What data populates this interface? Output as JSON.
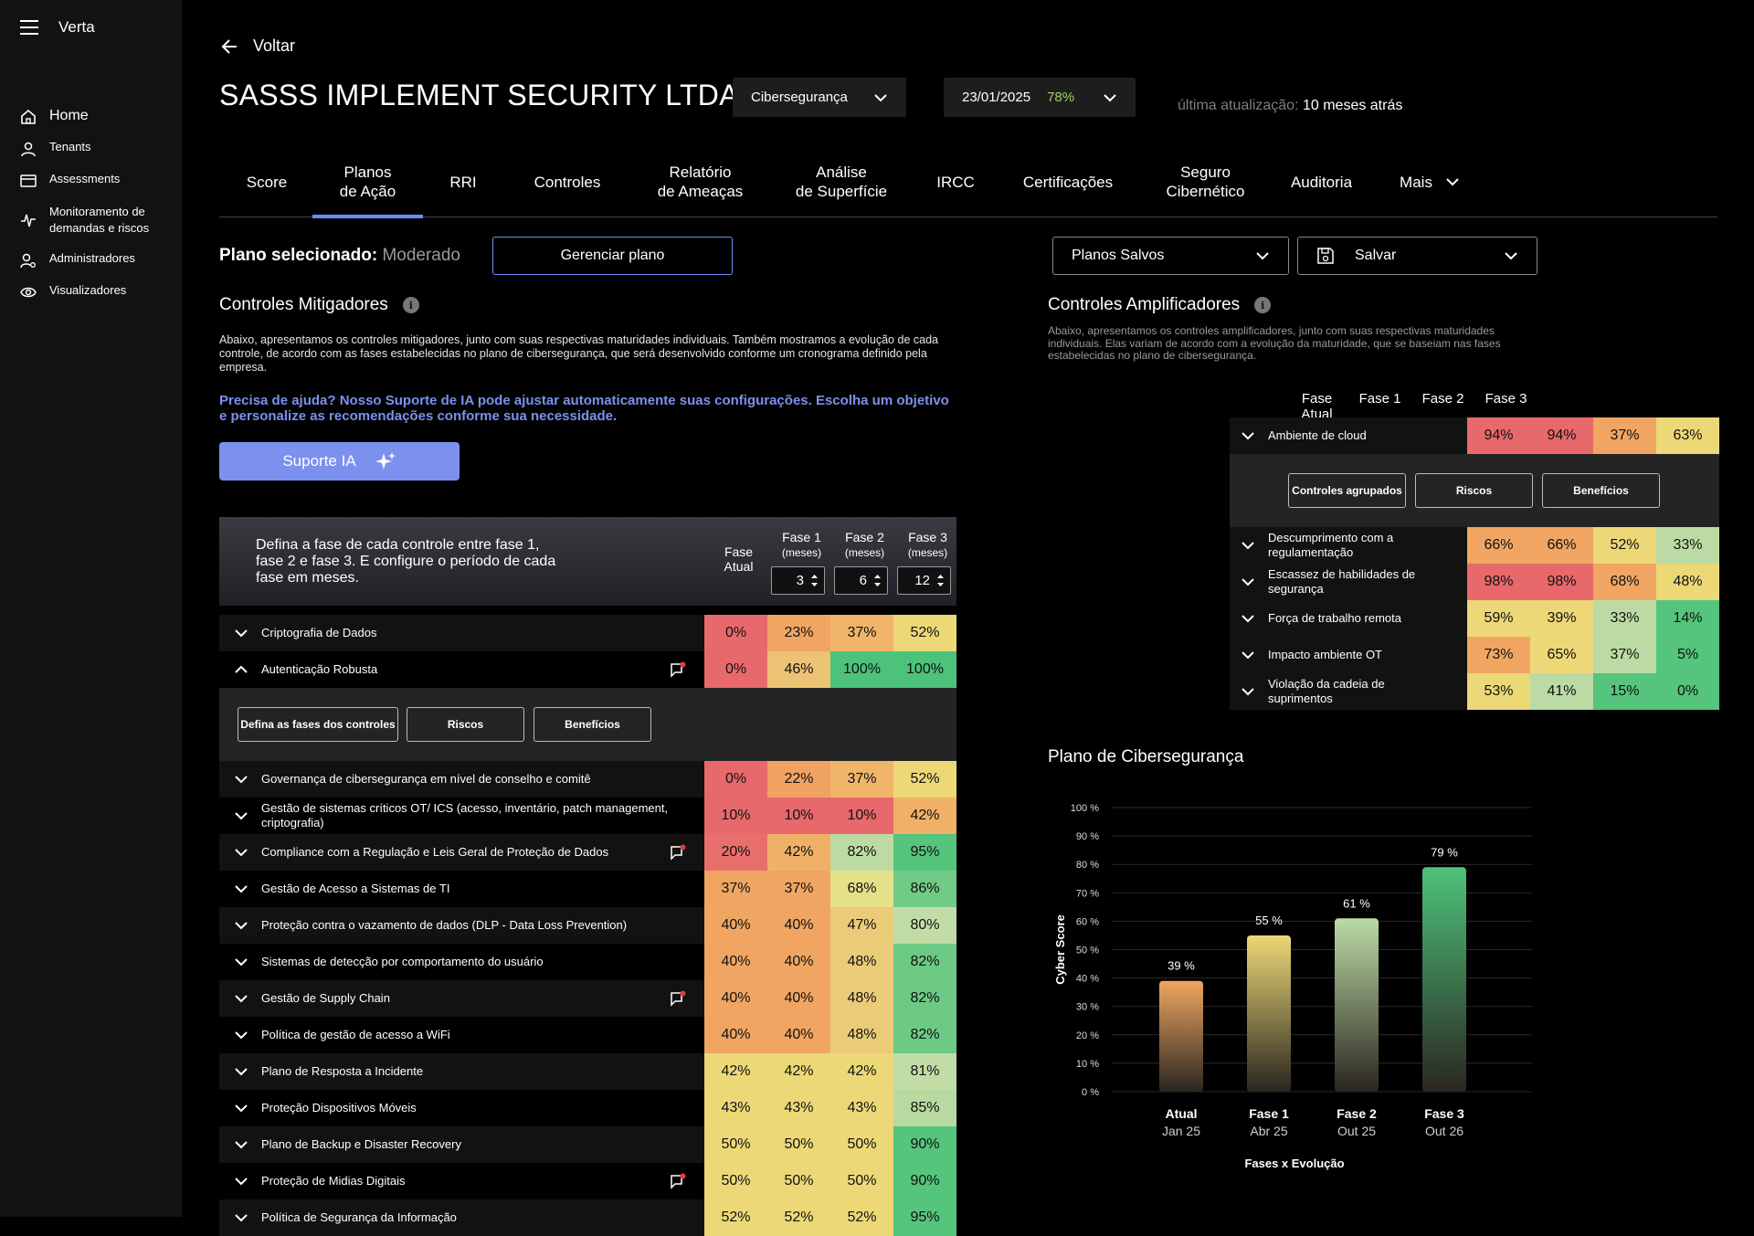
{
  "app": {
    "logo": "Verta"
  },
  "sidebar": {
    "items": [
      {
        "label": "Home",
        "icon": "home-icon"
      },
      {
        "label": "Tenants",
        "icon": "user-icon"
      },
      {
        "label": "Assessments",
        "icon": "card-icon"
      },
      {
        "label": "Monitoramento de demandas e riscos",
        "icon": "pulse-icon"
      },
      {
        "label": "Administradores",
        "icon": "admin-icon"
      },
      {
        "label": "Visualizadores",
        "icon": "eye-icon"
      }
    ]
  },
  "header": {
    "back_label": "Voltar",
    "company": "SASSS IMPLEMENT SECURITY LTDA",
    "category": "Cibersegurança",
    "date": "23/01/2025",
    "date_score": "78%",
    "updated_label": "última atualização:",
    "updated_value": "10 meses atrás"
  },
  "tabs": [
    {
      "l1": "Score",
      "l2": ""
    },
    {
      "l1": "Planos",
      "l2": "de Ação"
    },
    {
      "l1": "RRI",
      "l2": ""
    },
    {
      "l1": "Controles",
      "l2": ""
    },
    {
      "l1": "Relatório",
      "l2": "de Ameaças"
    },
    {
      "l1": "Análise",
      "l2": "de Superfície"
    },
    {
      "l1": "IRCC",
      "l2": ""
    },
    {
      "l1": "Certificações",
      "l2": ""
    },
    {
      "l1": "Seguro",
      "l2": "Cibernético"
    },
    {
      "l1": "Auditoria",
      "l2": ""
    },
    {
      "l1": "Mais",
      "l2": ""
    }
  ],
  "plan": {
    "selected_label": "Plano selecionado:",
    "selected_value": "Moderado",
    "manage_button": "Gerenciar plano",
    "saved_plans": "Planos Salvos",
    "save": "Salvar"
  },
  "mitigadores": {
    "title": "Controles Mitigadores",
    "desc": "Abaixo, apresentamos os controles mitigadores, junto com suas respectivas maturidades individuais. Também mostramos a evolução de cada controle, de acordo com as fases estabelecidas no plano de cibersegurança, que será desenvolvido conforme um cronograma definido pela empresa.",
    "help": "Precisa de ajuda? Nosso Suporte de IA pode ajustar automaticamente suas configurações. Escolha um objetivo e personalize as recomendações conforme sua necessidade.",
    "ia_button": "Suporte IA",
    "table_intro": "Defina a fase de cada controle entre fase 1, fase 2 e fase 3.  E configure o período de cada fase em meses.",
    "col_atual": "Fase Atual",
    "col_f1": "Fase 1",
    "col_f2": "Fase 2",
    "col_f3": "Fase 3",
    "col_unit": "(meses)",
    "months": [
      "3",
      "6",
      "12"
    ],
    "sub_buttons": [
      "Defina as fases dos controles",
      "Riscos",
      "Benefícios"
    ],
    "rows": [
      {
        "label": "Criptografia de Dados",
        "v": [
          "0%",
          "23%",
          "37%",
          "52%"
        ],
        "c": [
          "#e8696b",
          "#f0a662",
          "#f0b56a",
          "#ecd877"
        ],
        "chat": false,
        "open": false
      },
      {
        "label": "Autenticação Robusta",
        "v": [
          "0%",
          "46%",
          "100%",
          "100%"
        ],
        "c": [
          "#e8696b",
          "#ecc274",
          "#4dc27a",
          "#4dc27a"
        ],
        "chat": true,
        "open": true
      },
      {
        "label": "Governança de cibersegurança em nível de conselho e comitê",
        "v": [
          "0%",
          "22%",
          "37%",
          "52%"
        ],
        "c": [
          "#e8696b",
          "#f0a262",
          "#f0b56a",
          "#ecd877"
        ],
        "chat": false
      },
      {
        "label": "Gestão de sistemas críticos OT/ ICS (acesso, inventário, patch management, criptografia)",
        "v": [
          "10%",
          "10%",
          "10%",
          "42%"
        ],
        "c": [
          "#e8696b",
          "#e8696b",
          "#e8696b",
          "#f0b068"
        ],
        "chat": false
      },
      {
        "label": "Compliance com a Regulação e Leis Geral de Proteção de Dados",
        "v": [
          "20%",
          "42%",
          "82%",
          "95%"
        ],
        "c": [
          "#e86f6b",
          "#f0b068",
          "#bcdba4",
          "#55c47c"
        ],
        "chat": true
      },
      {
        "label": "Gestão de Acesso a Sistemas de TI",
        "v": [
          "37%",
          "37%",
          "68%",
          "86%"
        ],
        "c": [
          "#f0a662",
          "#f0a662",
          "#e5e08a",
          "#71cb86"
        ],
        "chat": false
      },
      {
        "label": "Proteção contra o vazamento de dados (DLP - Data Loss Prevention)",
        "v": [
          "40%",
          "40%",
          "47%",
          "80%"
        ],
        "c": [
          "#f0a662",
          "#f0a662",
          "#eacb78",
          "#c2dca6"
        ],
        "chat": false
      },
      {
        "label": "Sistemas de detecção por comportamento do usuário",
        "v": [
          "40%",
          "40%",
          "48%",
          "82%"
        ],
        "c": [
          "#f0a662",
          "#f0a662",
          "#eacb78",
          "#6cca84"
        ],
        "chat": false
      },
      {
        "label": "Gestão de Supply Chain",
        "v": [
          "40%",
          "40%",
          "48%",
          "82%"
        ],
        "c": [
          "#f0a662",
          "#f0a662",
          "#eacb78",
          "#6cca84"
        ],
        "chat": true
      },
      {
        "label": "Política de gestão de acesso a WiFi",
        "v": [
          "40%",
          "40%",
          "48%",
          "82%"
        ],
        "c": [
          "#f0a662",
          "#f0a662",
          "#eacb78",
          "#6cca84"
        ],
        "chat": false
      },
      {
        "label": "Plano de Resposta a Incidente",
        "v": [
          "42%",
          "42%",
          "42%",
          "81%"
        ],
        "c": [
          "#ecd877",
          "#ecd877",
          "#ecd877",
          "#c2dca6"
        ],
        "chat": false
      },
      {
        "label": "Proteção Dispositivos Móveis",
        "v": [
          "43%",
          "43%",
          "43%",
          "85%"
        ],
        "c": [
          "#ecd877",
          "#ecd877",
          "#ecd877",
          "#b8d9a0"
        ],
        "chat": false
      },
      {
        "label": "Plano de Backup e Disaster Recovery",
        "v": [
          "50%",
          "50%",
          "50%",
          "90%"
        ],
        "c": [
          "#ecd877",
          "#ecd877",
          "#ecd877",
          "#55c47c"
        ],
        "chat": false
      },
      {
        "label": "Proteção de Midias Digitais",
        "v": [
          "50%",
          "50%",
          "50%",
          "90%"
        ],
        "c": [
          "#ecd877",
          "#ecd877",
          "#ecd877",
          "#55c47c"
        ],
        "chat": true
      },
      {
        "label": "Política de Segurança da Informação",
        "v": [
          "52%",
          "52%",
          "52%",
          "95%"
        ],
        "c": [
          "#ecd877",
          "#ecd877",
          "#ecd877",
          "#55c47c"
        ],
        "chat": false
      }
    ]
  },
  "amplificadores": {
    "title": "Controles Amplificadores",
    "desc": "Abaixo, apresentamos os controles amplificadores, junto com suas respectivas maturidades individuais. Elas variam de acordo com a evolução da maturidade, que se baseiam nas fases estabelecidas no plano de cibersegurança.",
    "cols": [
      "Fase Atual",
      "Fase 1",
      "Fase 2",
      "Fase 3"
    ],
    "sub_buttons": [
      "Controles agrupados",
      "Riscos",
      "Benefícios"
    ],
    "rows": [
      {
        "label": "Ambiente de cloud",
        "v": [
          "94%",
          "94%",
          "37%",
          "63%"
        ],
        "c": [
          "#e8696b",
          "#e8696b",
          "#f0a662",
          "#ecd877"
        ]
      },
      {
        "label": "Descumprimento com a regulamentação",
        "v": [
          "66%",
          "66%",
          "52%",
          "33%"
        ],
        "c": [
          "#f0a662",
          "#f0a662",
          "#ecd877",
          "#bcdba4"
        ]
      },
      {
        "label": "Escassez de habilidades de segurança",
        "v": [
          "98%",
          "98%",
          "68%",
          "48%"
        ],
        "c": [
          "#e8696b",
          "#e8696b",
          "#f0a662",
          "#ecd877"
        ]
      },
      {
        "label": "Força de trabalho remota",
        "v": [
          "59%",
          "39%",
          "33%",
          "14%"
        ],
        "c": [
          "#ecd877",
          "#ecd877",
          "#bcdba4",
          "#55c47c"
        ]
      },
      {
        "label": "Impacto ambiente OT",
        "v": [
          "73%",
          "65%",
          "37%",
          "5%"
        ],
        "c": [
          "#f0a662",
          "#ecd877",
          "#bcdba4",
          "#55c47c"
        ]
      },
      {
        "label": "Violação da cadeia de suprimentos",
        "v": [
          "53%",
          "41%",
          "15%",
          "0%"
        ],
        "c": [
          "#ecd877",
          "#bcdba4",
          "#55c47c",
          "#55c47c"
        ]
      }
    ]
  },
  "chart_data": {
    "type": "bar",
    "title": "Plano de Cibersegurança",
    "categories": [
      "Atual",
      "Fase 1",
      "Fase 2",
      "Fase 3"
    ],
    "subcategories": [
      "Jan 25",
      "Abr 25",
      "Out 25",
      "Out 26"
    ],
    "values": [
      39,
      55,
      61,
      79
    ],
    "value_labels": [
      "39 %",
      "55 %",
      "61 %",
      "79 %"
    ],
    "colors": [
      "#f0a662",
      "#ecd877",
      "#bcdba4",
      "#4dc27a"
    ],
    "ylabel": "Cyber Score",
    "xlabel": "Fases x Evolução",
    "ylim": [
      0,
      100
    ],
    "yticks": [
      "0 %",
      "10 %",
      "20 %",
      "30 %",
      "40 %",
      "50 %",
      "60 %",
      "70 %",
      "80 %",
      "90 %",
      "100 %"
    ],
    "grid": true
  }
}
